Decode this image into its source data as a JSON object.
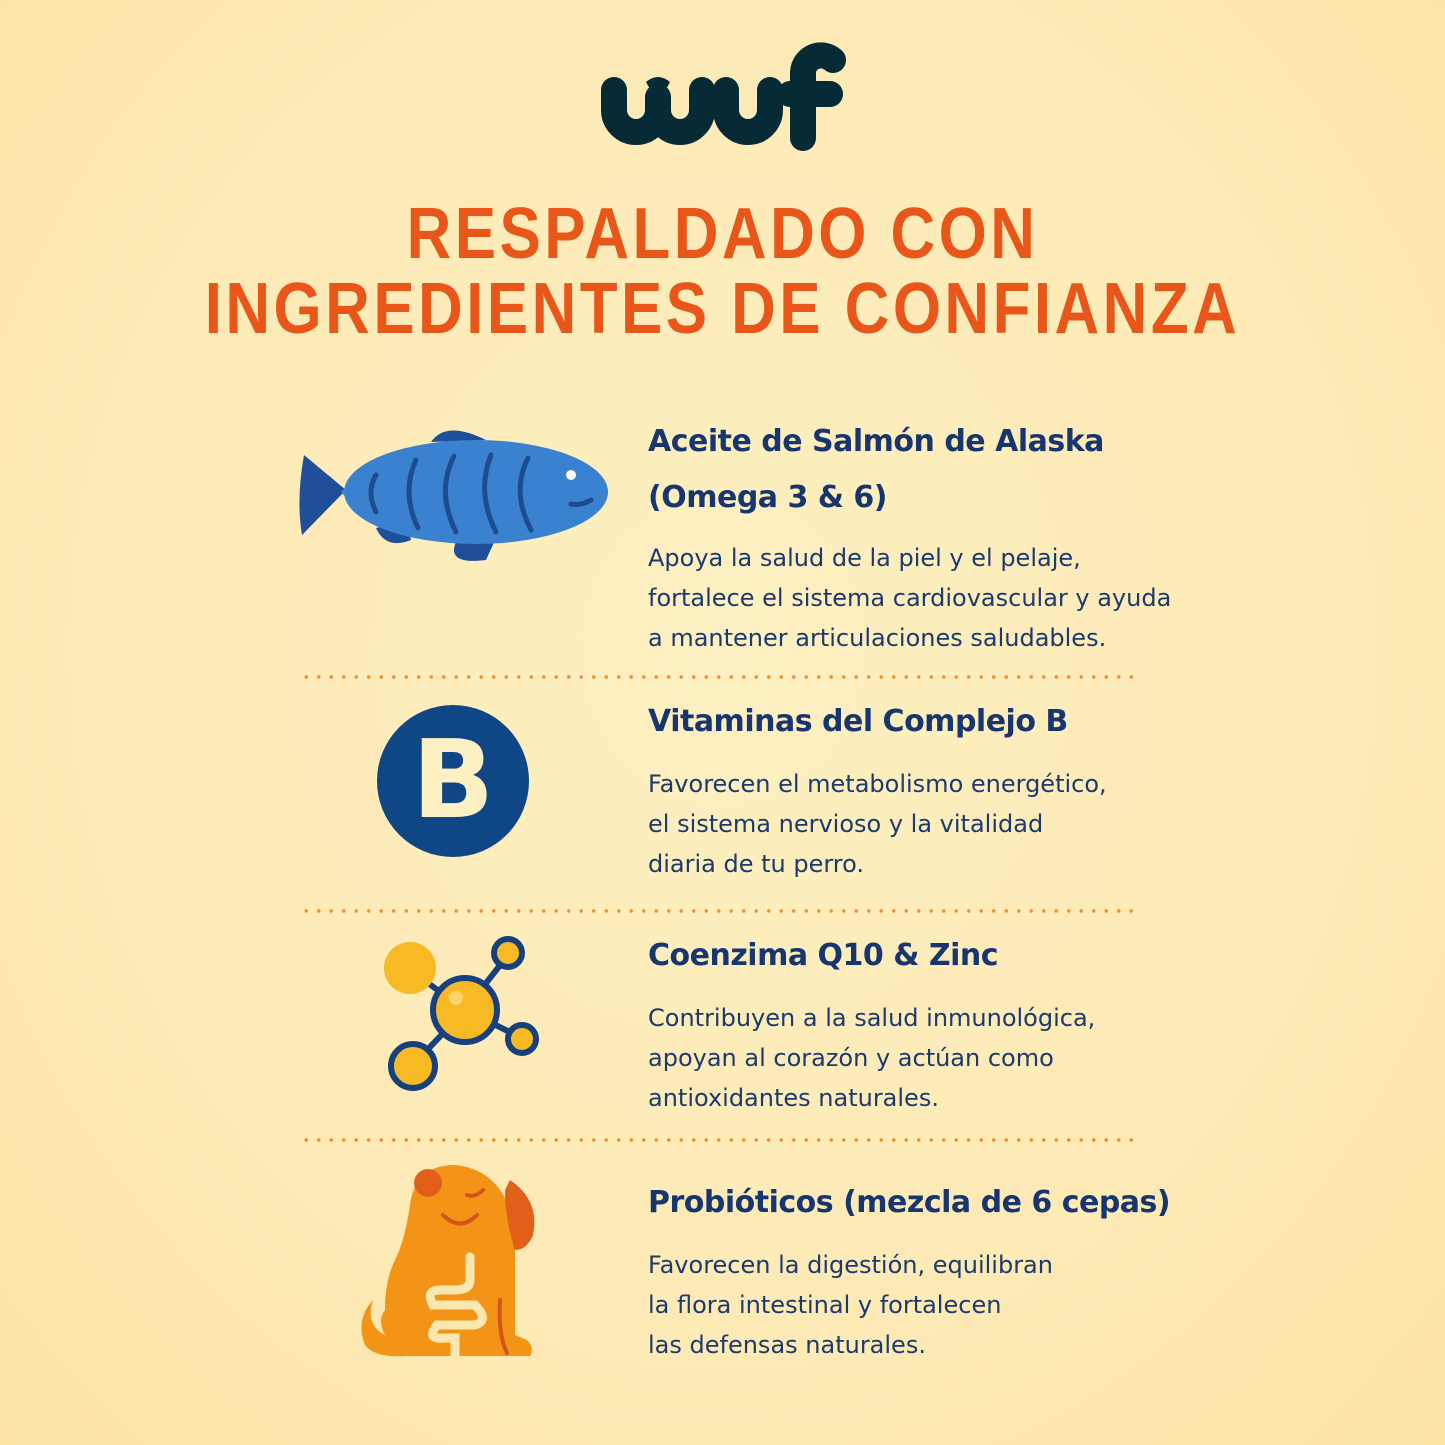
{
  "brand": {
    "logo_text": "wuf",
    "color": "#062a36"
  },
  "title": {
    "line1": "RESPALDADO CON",
    "line2": "INGREDIENTES DE CONFIANZA",
    "color": "#e8561a"
  },
  "items": [
    {
      "icon": "fish-icon",
      "heading_line1": "Aceite de Salmón de Alaska",
      "heading_line2": "(Omega 3 & 6)",
      "body": [
        "Apoya la salud de la piel y el pelaje,",
        "fortalece el sistema cardiovascular y ayuda",
        "a mantener articulaciones saludables."
      ]
    },
    {
      "icon": "vitamin-b-icon",
      "icon_letter": "B",
      "heading_line1": "Vitaminas del Complejo B",
      "body": [
        "Favorecen el metabolismo energético,",
        "el sistema nervioso y la vitalidad",
        "diaria de tu perro."
      ]
    },
    {
      "icon": "molecule-icon",
      "heading_line1": "Coenzima Q10 & Zinc",
      "body": [
        "Contribuyen a la salud inmunológica,",
        "apoyan al corazón y actúan como",
        "antioxidantes naturales."
      ]
    },
    {
      "icon": "dog-gut-icon",
      "heading_line1": "Probióticos (mezcla de 6 cepas)",
      "body": [
        "Favorecen la digestión, equilibran",
        "la flora intestinal y fortalecen",
        "las defensas naturales."
      ]
    }
  ]
}
